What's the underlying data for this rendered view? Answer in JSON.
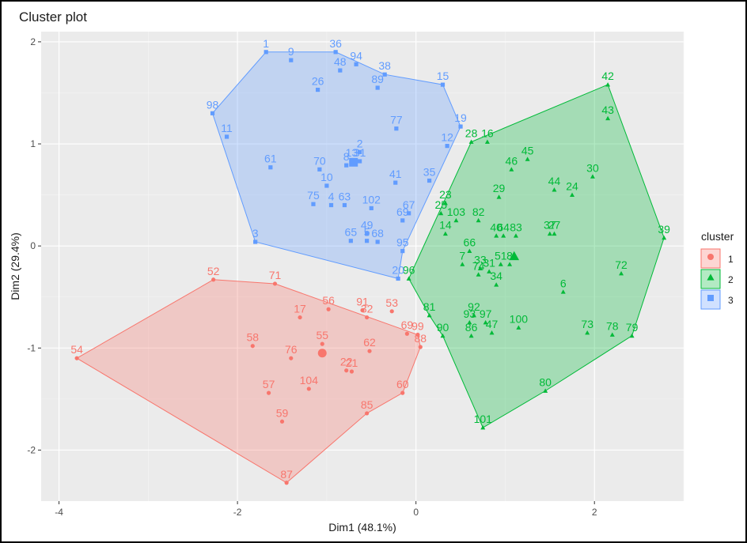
{
  "chart_data": {
    "type": "scatter",
    "title": "Cluster plot",
    "xlabel": "Dim1 (48.1%)",
    "ylabel": "Dim2 (29.4%)",
    "xlim": [
      -4.2,
      3.0
    ],
    "ylim": [
      -2.5,
      2.1
    ],
    "xticks": [
      -4,
      -2,
      0,
      2
    ],
    "yticks": [
      -2,
      -1,
      0,
      1,
      2
    ],
    "grid": true,
    "legend": {
      "title": "cluster",
      "position": "right",
      "entries": [
        "1",
        "2",
        "3"
      ]
    },
    "series": [
      {
        "name": "1",
        "color": "#F8766D",
        "marker": "circle",
        "hull": [
          "54",
          "52",
          "71",
          "99",
          "88",
          "60",
          "85",
          "87"
        ],
        "center": [
          -1.05,
          -1.05
        ],
        "points": [
          {
            "label": "52",
            "x": -2.27,
            "y": -0.33
          },
          {
            "label": "71",
            "x": -1.58,
            "y": -0.37
          },
          {
            "label": "56",
            "x": -0.98,
            "y": -0.62
          },
          {
            "label": "91",
            "x": -0.6,
            "y": -0.63
          },
          {
            "label": "32",
            "x": -0.55,
            "y": -0.7
          },
          {
            "label": "53",
            "x": -0.27,
            "y": -0.64
          },
          {
            "label": "17",
            "x": -1.3,
            "y": -0.7
          },
          {
            "label": "58",
            "x": -1.83,
            "y": -0.98
          },
          {
            "label": "55",
            "x": -1.05,
            "y": -0.96
          },
          {
            "label": "76",
            "x": -1.4,
            "y": -1.1
          },
          {
            "label": "62",
            "x": -0.52,
            "y": -1.03
          },
          {
            "label": "22",
            "x": -0.78,
            "y": -1.22
          },
          {
            "label": "21",
            "x": -0.72,
            "y": -1.23
          },
          {
            "label": "69",
            "x": -0.1,
            "y": -0.86
          },
          {
            "label": "99",
            "x": 0.02,
            "y": -0.87
          },
          {
            "label": "88",
            "x": 0.05,
            "y": -0.99
          },
          {
            "label": "54",
            "x": -3.8,
            "y": -1.1
          },
          {
            "label": "104",
            "x": -1.2,
            "y": -1.4
          },
          {
            "label": "57",
            "x": -1.65,
            "y": -1.44
          },
          {
            "label": "60",
            "x": -0.15,
            "y": -1.44
          },
          {
            "label": "59",
            "x": -1.5,
            "y": -1.72
          },
          {
            "label": "85",
            "x": -0.55,
            "y": -1.64
          },
          {
            "label": "87",
            "x": -1.45,
            "y": -2.32
          }
        ]
      },
      {
        "name": "2",
        "color": "#00BA38",
        "marker": "triangle",
        "hull": [
          "42",
          "39",
          "79",
          "80",
          "101",
          "90",
          "81",
          "96",
          "28"
        ],
        "center": [
          1.1,
          -0.1
        ],
        "points": [
          {
            "label": "42",
            "x": 2.15,
            "y": 1.58
          },
          {
            "label": "43",
            "x": 2.15,
            "y": 1.25
          },
          {
            "label": "28",
            "x": 0.62,
            "y": 1.02
          },
          {
            "label": "16",
            "x": 0.8,
            "y": 1.02
          },
          {
            "label": "45",
            "x": 1.25,
            "y": 0.85
          },
          {
            "label": "46",
            "x": 1.07,
            "y": 0.75
          },
          {
            "label": "30",
            "x": 1.98,
            "y": 0.68
          },
          {
            "label": "44",
            "x": 1.55,
            "y": 0.55
          },
          {
            "label": "24",
            "x": 1.75,
            "y": 0.5
          },
          {
            "label": "29",
            "x": 0.93,
            "y": 0.48
          },
          {
            "label": "23",
            "x": 0.33,
            "y": 0.42
          },
          {
            "label": "25",
            "x": 0.28,
            "y": 0.32
          },
          {
            "label": "103",
            "x": 0.45,
            "y": 0.25
          },
          {
            "label": "82",
            "x": 0.7,
            "y": 0.25
          },
          {
            "label": "14",
            "x": 0.33,
            "y": 0.12
          },
          {
            "label": "40",
            "x": 0.9,
            "y": 0.1
          },
          {
            "label": "64",
            "x": 0.98,
            "y": 0.1
          },
          {
            "label": "83",
            "x": 1.12,
            "y": 0.1
          },
          {
            "label": "37",
            "x": 1.5,
            "y": 0.12
          },
          {
            "label": "27",
            "x": 1.55,
            "y": 0.12
          },
          {
            "label": "39",
            "x": 2.78,
            "y": 0.08
          },
          {
            "label": "66",
            "x": 0.6,
            "y": -0.05
          },
          {
            "label": "7",
            "x": 0.52,
            "y": -0.18
          },
          {
            "label": "33",
            "x": 0.72,
            "y": -0.22
          },
          {
            "label": "31",
            "x": 0.82,
            "y": -0.25
          },
          {
            "label": "74",
            "x": 0.7,
            "y": -0.28
          },
          {
            "label": "51",
            "x": 0.95,
            "y": -0.18
          },
          {
            "label": "8",
            "x": 1.05,
            "y": -0.18
          },
          {
            "label": "34",
            "x": 0.9,
            "y": -0.38
          },
          {
            "label": "72",
            "x": 2.3,
            "y": -0.27
          },
          {
            "label": "96",
            "x": -0.08,
            "y": -0.32
          },
          {
            "label": "6",
            "x": 1.65,
            "y": -0.45
          },
          {
            "label": "81",
            "x": 0.15,
            "y": -0.68
          },
          {
            "label": "92",
            "x": 0.65,
            "y": -0.68
          },
          {
            "label": "93",
            "x": 0.6,
            "y": -0.75
          },
          {
            "label": "97",
            "x": 0.78,
            "y": -0.75
          },
          {
            "label": "90",
            "x": 0.3,
            "y": -0.88
          },
          {
            "label": "86",
            "x": 0.62,
            "y": -0.88
          },
          {
            "label": "47",
            "x": 0.85,
            "y": -0.85
          },
          {
            "label": "100",
            "x": 1.15,
            "y": -0.8
          },
          {
            "label": "73",
            "x": 1.92,
            "y": -0.85
          },
          {
            "label": "78",
            "x": 2.2,
            "y": -0.87
          },
          {
            "label": "79",
            "x": 2.42,
            "y": -0.88
          },
          {
            "label": "80",
            "x": 1.45,
            "y": -1.42
          },
          {
            "label": "101",
            "x": 0.75,
            "y": -1.78
          }
        ]
      },
      {
        "name": "3",
        "color": "#619CFF",
        "marker": "square",
        "hull": [
          "1",
          "36",
          "38",
          "15",
          "19",
          "95",
          "20",
          "3",
          "98"
        ],
        "center": [
          -0.7,
          0.82
        ],
        "points": [
          {
            "label": "1",
            "x": -1.68,
            "y": 1.9
          },
          {
            "label": "36",
            "x": -0.9,
            "y": 1.9
          },
          {
            "label": "9",
            "x": -1.4,
            "y": 1.82
          },
          {
            "label": "94",
            "x": -0.67,
            "y": 1.78
          },
          {
            "label": "38",
            "x": -0.35,
            "y": 1.68
          },
          {
            "label": "48",
            "x": -0.85,
            "y": 1.72
          },
          {
            "label": "26",
            "x": -1.1,
            "y": 1.53
          },
          {
            "label": "89",
            "x": -0.43,
            "y": 1.55
          },
          {
            "label": "15",
            "x": 0.3,
            "y": 1.58
          },
          {
            "label": "98",
            "x": -2.28,
            "y": 1.3
          },
          {
            "label": "77",
            "x": -0.22,
            "y": 1.15
          },
          {
            "label": "19",
            "x": 0.5,
            "y": 1.17
          },
          {
            "label": "11",
            "x": -2.12,
            "y": 1.07
          },
          {
            "label": "12",
            "x": 0.35,
            "y": 0.98
          },
          {
            "label": "2",
            "x": -0.63,
            "y": 0.92
          },
          {
            "label": "13",
            "x": -0.72,
            "y": 0.83
          },
          {
            "label": "31",
            "x": -0.63,
            "y": 0.83
          },
          {
            "label": "8",
            "x": -0.78,
            "y": 0.79
          },
          {
            "label": "61",
            "x": -1.63,
            "y": 0.77
          },
          {
            "label": "70",
            "x": -1.08,
            "y": 0.75
          },
          {
            "label": "41",
            "x": -0.23,
            "y": 0.62
          },
          {
            "label": "35",
            "x": 0.15,
            "y": 0.64
          },
          {
            "label": "10",
            "x": -1.0,
            "y": 0.59
          },
          {
            "label": "75",
            "x": -1.15,
            "y": 0.41
          },
          {
            "label": "4",
            "x": -0.95,
            "y": 0.4
          },
          {
            "label": "63",
            "x": -0.8,
            "y": 0.4
          },
          {
            "label": "102",
            "x": -0.5,
            "y": 0.37
          },
          {
            "label": "67",
            "x": -0.08,
            "y": 0.32
          },
          {
            "label": "69",
            "x": -0.15,
            "y": 0.25
          },
          {
            "label": "49",
            "x": -0.55,
            "y": 0.12
          },
          {
            "label": "3",
            "x": -1.8,
            "y": 0.04
          },
          {
            "label": "65",
            "x": -0.73,
            "y": 0.05
          },
          {
            "label": "5",
            "x": -0.55,
            "y": 0.05
          },
          {
            "label": "68",
            "x": -0.43,
            "y": 0.04
          },
          {
            "label": "95",
            "x": -0.15,
            "y": -0.05
          },
          {
            "label": "20",
            "x": -0.2,
            "y": -0.32
          }
        ]
      }
    ]
  }
}
